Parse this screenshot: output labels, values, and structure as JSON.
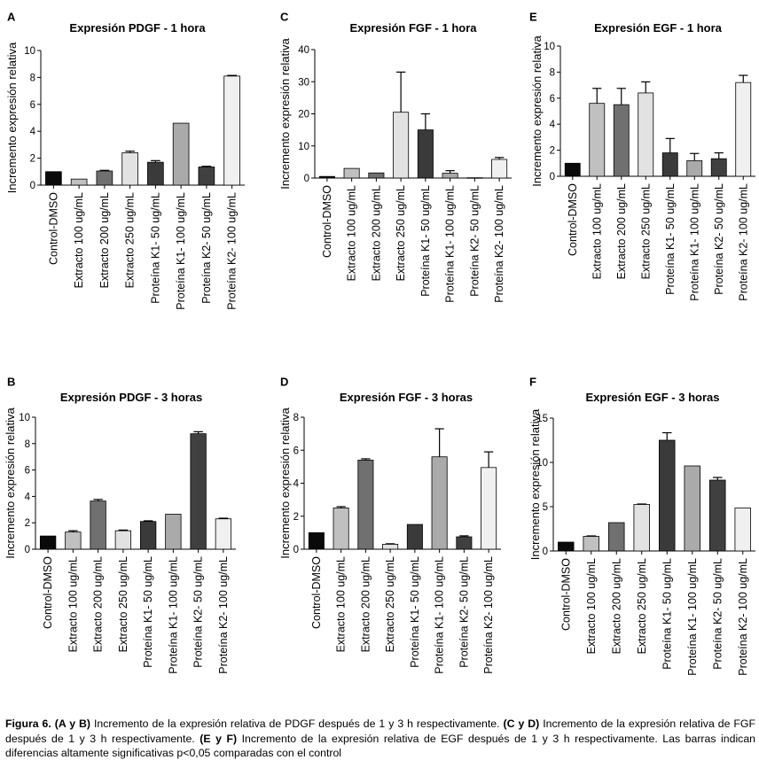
{
  "caption": {
    "figure_label": "Figura 6.",
    "part1_bold": "(A y B)",
    "part1_text": " Incremento de la expresión relativa de PDGF después de 1 y 3 h respectivamente. ",
    "part2_bold": "(C y D)",
    "part2_text": " Incremento de la expresión relativa de FGF después de 1 y 3 h respectivamente. ",
    "part3_bold": "(E y F)",
    "part3_text": " Incremento de la expresión relativa de EGF después de 1 y 3 h respectivamente. Las barras indican diferencias altamente significativas p<0,05 comparadas con el control"
  },
  "colors": [
    "#0a0a0a",
    "#c0c0c0",
    "#707070",
    "#e2e2e2",
    "#3a3a3a",
    "#aaaaaa",
    "#404040",
    "#f0f0f0"
  ],
  "chart_data": [
    {
      "panel": "A",
      "type": "bar",
      "title": "Expresión PDGF - 1 hora",
      "ylabel": "Incremento expresión relativa",
      "xlabel": "",
      "ylim": [
        0,
        10
      ],
      "yticks": [
        0,
        2,
        4,
        6,
        8,
        10
      ],
      "categories": [
        "Control-DMSO",
        "Extracto 100 ug/mL",
        "Extracto 200 ug/mL",
        "Extracto 250 ug/mL",
        "Proteína K1- 50 ug/mL",
        "Proteína K1- 100 ug/mL",
        "Proteína K2- 50 ug/mL",
        "Proteína K2- 100 ug/mL"
      ],
      "values": [
        1.0,
        0.45,
        1.05,
        2.4,
        1.7,
        4.6,
        1.35,
        8.1
      ],
      "errors": [
        0,
        0,
        0.05,
        0.12,
        0.12,
        0,
        0.05,
        0.05
      ],
      "colors": [
        "#0a0a0a",
        "#c0c0c0",
        "#707070",
        "#e2e2e2",
        "#3a3a3a",
        "#aaaaaa",
        "#404040",
        "#f0f0f0"
      ]
    },
    {
      "panel": "B",
      "type": "bar",
      "title": "Expresión PDGF - 3 horas",
      "ylabel": "Incremento expresión relativa",
      "xlabel": "",
      "ylim": [
        0,
        10
      ],
      "yticks": [
        0,
        2,
        4,
        6,
        8,
        10
      ],
      "categories": [
        "Control-DMSO",
        "Extracto 100 ug/mL",
        "Extracto 200 ug/mL",
        "Extracto 250 ug/mL",
        "Proteína K1- 50 ug/mL",
        "Proteína K1- 100 ug/mL",
        "Proteína K2- 50 ug/mL",
        "Proteína K2- 100 ug/mL"
      ],
      "values": [
        1.0,
        1.3,
        3.65,
        1.4,
        2.1,
        2.65,
        8.75,
        2.3
      ],
      "errors": [
        0,
        0.1,
        0.12,
        0.05,
        0.05,
        0,
        0.15,
        0.05
      ],
      "colors": [
        "#0a0a0a",
        "#c0c0c0",
        "#707070",
        "#e2e2e2",
        "#3a3a3a",
        "#aaaaaa",
        "#404040",
        "#f0f0f0"
      ]
    },
    {
      "panel": "C",
      "type": "bar",
      "title": "Expresión FGF - 1 hora",
      "ylabel": "Incremento expresión relativa",
      "xlabel": "",
      "ylim": [
        0,
        40
      ],
      "yticks": [
        0,
        10,
        20,
        30,
        40
      ],
      "categories": [
        "Control-DMSO",
        "Extracto 100 ug/mL",
        "Extracto 200 ug/mL",
        "Extracto 250 ug/mL",
        "Proteína K1- 50 ug/mL",
        "Proteína K1- 100 ug/mL",
        "Proteína K2- 50 ug/mL",
        "Proteína K2- 100 ug/mL"
      ],
      "values": [
        0.5,
        3.0,
        1.6,
        20.5,
        15.0,
        1.5,
        0.1,
        5.8
      ],
      "errors": [
        0,
        0,
        0,
        12.5,
        5.0,
        0.8,
        0,
        0.6
      ],
      "colors": [
        "#0a0a0a",
        "#c0c0c0",
        "#707070",
        "#e2e2e2",
        "#3a3a3a",
        "#aaaaaa",
        "#404040",
        "#f0f0f0"
      ]
    },
    {
      "panel": "D",
      "type": "bar",
      "title": "Expresión FGF - 3 horas",
      "ylabel": "Incremento expresión relativa",
      "xlabel": "",
      "ylim": [
        0,
        8
      ],
      "yticks": [
        0,
        2,
        4,
        6,
        8
      ],
      "categories": [
        "Control-DMSO",
        "Extracto 100 ug/mL",
        "Extracto 200 ug/mL",
        "Extracto 250 ug/mL",
        "Proteína K1- 50 ug/mL",
        "Proteína K1- 100 ug/mL",
        "Proteína K2- 50 ug/mL",
        "Proteína K2- 100 ug/mL"
      ],
      "values": [
        1.0,
        2.5,
        5.4,
        0.3,
        1.5,
        5.6,
        0.75,
        4.95
      ],
      "errors": [
        0,
        0.08,
        0.08,
        0.03,
        0,
        1.7,
        0.06,
        0.95
      ],
      "colors": [
        "#0a0a0a",
        "#c0c0c0",
        "#707070",
        "#e2e2e2",
        "#3a3a3a",
        "#aaaaaa",
        "#404040",
        "#f0f0f0"
      ]
    },
    {
      "panel": "E",
      "type": "bar",
      "title": "Expresión EGF - 1 hora",
      "ylabel": "Incremento expresión relativa",
      "xlabel": "",
      "ylim": [
        0,
        10
      ],
      "yticks": [
        0,
        2,
        4,
        6,
        8,
        10
      ],
      "categories": [
        "Control-DMSO",
        "Extracto 100 ug/mL",
        "Extracto 200 ug/mL",
        "Extracto 250 ug/mL",
        "Proteína K1- 50 ug/mL",
        "Proteína K1- 100 ug/mL",
        "Proteína K2- 50 ug/mL",
        "Proteína K2- 100 ug/mL"
      ],
      "values": [
        1.0,
        5.6,
        5.5,
        6.4,
        1.8,
        1.2,
        1.35,
        7.2
      ],
      "errors": [
        0,
        1.15,
        1.25,
        0.85,
        1.1,
        0.55,
        0.45,
        0.55
      ],
      "colors": [
        "#0a0a0a",
        "#c0c0c0",
        "#707070",
        "#e2e2e2",
        "#3a3a3a",
        "#aaaaaa",
        "#404040",
        "#f0f0f0"
      ]
    },
    {
      "panel": "F",
      "type": "bar",
      "title": "Expresión EGF - 3 horas",
      "ylabel": "Incremento expresión relativa",
      "xlabel": "",
      "ylim": [
        0,
        15
      ],
      "yticks": [
        0,
        5,
        10,
        15
      ],
      "categories": [
        "Control-DMSO",
        "Extracto 100 ug/mL",
        "Extracto 200 ug/mL",
        "Extracto 250 ug/mL",
        "Proteína K1- 50 ug/mL",
        "Proteína K1- 100 ug/mL",
        "Proteína K2- 50 ug/mL",
        "Proteína K2- 100 ug/mL"
      ],
      "values": [
        1.0,
        1.65,
        3.2,
        5.25,
        12.5,
        9.6,
        8.0,
        4.85
      ],
      "errors": [
        0,
        0.05,
        0,
        0.05,
        0.85,
        0,
        0.3,
        0
      ],
      "colors": [
        "#0a0a0a",
        "#c0c0c0",
        "#707070",
        "#e2e2e2",
        "#3a3a3a",
        "#aaaaaa",
        "#404040",
        "#f0f0f0"
      ]
    }
  ]
}
